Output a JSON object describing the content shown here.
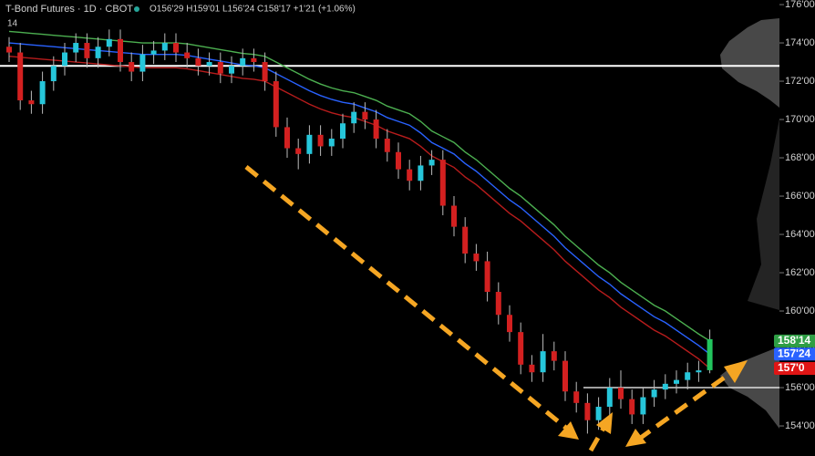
{
  "chart_data": {
    "type": "candlestick",
    "symbol": "T-Bond Futures · 1D · CBOT",
    "ohlc_text": "O156'29 H159'01 L156'24 C158'17 +1'21 (+1.06%)",
    "indicator_label": "14",
    "open": [
      173.8,
      173.5,
      171,
      170.8,
      172,
      172.8,
      173.5,
      174,
      173.2,
      173.8,
      174.2,
      173,
      172.5,
      173.4,
      173.6,
      174,
      173.5,
      173.2,
      172.8,
      173,
      172.4,
      172.8,
      173.2,
      173,
      172,
      169.6,
      168.5,
      168.2,
      169.2,
      168.6,
      169,
      169.8,
      170.4,
      170,
      169,
      168.3,
      167.4,
      166.8,
      167.6,
      167.9,
      165.5,
      164.4,
      163,
      162.6,
      161,
      159.8,
      158.9,
      157.2,
      156.8,
      157.9,
      157.4,
      155.8,
      155.2,
      154.3,
      155,
      156,
      155.4,
      154.6,
      155.5,
      155.9,
      156.2,
      156.4,
      156.8,
      156.91
    ],
    "high": [
      174.3,
      174,
      171.5,
      172.5,
      173.3,
      174,
      174.5,
      174.5,
      174.3,
      174.7,
      174.7,
      173.5,
      173.9,
      174.1,
      174.5,
      174.5,
      174,
      173.7,
      173.5,
      173.5,
      173.3,
      173.7,
      173.7,
      173.5,
      172.5,
      170.1,
      169,
      169.7,
      169.7,
      169.5,
      170.3,
      170.9,
      170.9,
      170.5,
      169.5,
      168.8,
      167.9,
      168.1,
      168.4,
      168.4,
      166,
      164.9,
      163.5,
      163.1,
      161.5,
      160.3,
      159.4,
      157.7,
      158.8,
      158.4,
      157.9,
      156.3,
      155.7,
      155.5,
      156.5,
      156.9,
      155.9,
      156,
      156.4,
      156.7,
      156.9,
      157.3,
      157.4,
      159.03
    ],
    "low": [
      173,
      170.5,
      170.3,
      170.3,
      171.5,
      172.3,
      173,
      172.7,
      172.7,
      173.3,
      172.5,
      172,
      172,
      172.9,
      173.1,
      173,
      172.7,
      172.3,
      172.3,
      171.9,
      171.9,
      172.3,
      172.5,
      171.5,
      169.1,
      168,
      167.4,
      167.7,
      168.1,
      168.1,
      168.5,
      169.3,
      169.5,
      168.5,
      167.8,
      166.9,
      166.3,
      166.3,
      167.1,
      165,
      163.9,
      162.5,
      162.1,
      160.5,
      159.3,
      158.4,
      156.7,
      156.3,
      156.3,
      156.9,
      155.3,
      154.7,
      153.6,
      153.8,
      154.5,
      154.9,
      154.1,
      154.1,
      155,
      155.4,
      155.7,
      155.9,
      156.3,
      156.75
    ],
    "close": [
      173.5,
      171,
      170.8,
      172,
      172.8,
      173.5,
      174,
      173.2,
      173.8,
      174.2,
      173,
      172.5,
      173.4,
      173.6,
      174,
      173.5,
      173.2,
      172.8,
      173,
      172.4,
      172.8,
      173.2,
      173,
      172,
      169.6,
      168.5,
      168.2,
      169.2,
      168.6,
      169,
      169.8,
      170.4,
      170,
      169,
      168.3,
      167.4,
      166.8,
      167.6,
      167.9,
      165.5,
      164.4,
      163,
      162.6,
      161,
      159.8,
      158.9,
      157.2,
      156.8,
      157.9,
      157.4,
      155.8,
      155.2,
      154.3,
      155,
      156,
      155.4,
      154.6,
      155.5,
      155.9,
      156.2,
      156.4,
      156.8,
      156.9,
      158.53
    ],
    "up_color": "#26c6da",
    "down_color": "#d32020",
    "last_color": "#22c55e",
    "series": [
      {
        "color": "#4caf50",
        "values": [
          174.6,
          174.55,
          174.5,
          174.45,
          174.4,
          174.35,
          174.3,
          174.25,
          174.2,
          174.15,
          174.1,
          174.05,
          174,
          174,
          174,
          174,
          173.95,
          173.85,
          173.75,
          173.65,
          173.55,
          173.45,
          173.4,
          173.3,
          173,
          172.7,
          172.4,
          172.1,
          171.85,
          171.65,
          171.5,
          171.4,
          171.2,
          171,
          170.7,
          170.5,
          170.3,
          169.9,
          169.4,
          169.1,
          168.8,
          168.3,
          167.9,
          167.4,
          166.9,
          166.4,
          166,
          165.5,
          165,
          164.5,
          163.9,
          163.4,
          162.9,
          162.4,
          162,
          161.5,
          161.1,
          160.7,
          160.3,
          160,
          159.6,
          159.2,
          158.8,
          158.44
        ]
      },
      {
        "color": "#2962ff",
        "values": [
          174,
          173.95,
          173.9,
          173.85,
          173.8,
          173.75,
          173.7,
          173.65,
          173.6,
          173.55,
          173.5,
          173.45,
          173.4,
          173.4,
          173.4,
          173.4,
          173.35,
          173.25,
          173.15,
          173.05,
          172.95,
          172.85,
          172.8,
          172.7,
          172.4,
          172.1,
          171.8,
          171.5,
          171.25,
          171.05,
          170.9,
          170.8,
          170.6,
          170.4,
          170.1,
          169.9,
          169.7,
          169.3,
          168.8,
          168.5,
          168.2,
          167.7,
          167.3,
          166.8,
          166.3,
          165.8,
          165.4,
          164.9,
          164.4,
          163.9,
          163.3,
          162.8,
          162.3,
          161.8,
          161.4,
          160.9,
          160.5,
          160.1,
          159.7,
          159.4,
          159,
          158.6,
          158.2,
          157.75
        ]
      },
      {
        "color": "#b71c1c",
        "values": [
          173.3,
          173.25,
          173.2,
          173.15,
          173.1,
          173.05,
          173,
          172.95,
          172.9,
          172.85,
          172.8,
          172.75,
          172.7,
          172.7,
          172.7,
          172.7,
          172.65,
          172.55,
          172.45,
          172.35,
          172.25,
          172.15,
          172.1,
          172,
          171.7,
          171.4,
          171.1,
          170.8,
          170.55,
          170.35,
          170.2,
          170.1,
          169.9,
          169.7,
          169.4,
          169.2,
          169,
          168.6,
          168.1,
          167.8,
          167.5,
          167,
          166.6,
          166.1,
          165.6,
          165.1,
          164.7,
          164.2,
          163.7,
          163.2,
          162.6,
          162.1,
          161.6,
          161.1,
          160.7,
          160.2,
          159.8,
          159.4,
          159,
          158.7,
          158.3,
          157.9,
          157.5,
          157
        ]
      }
    ],
    "price_tags": [
      {
        "value": 158.4375,
        "label": "158'14",
        "color": "#2e9e44"
      },
      {
        "value": 157.75,
        "label": "157'24",
        "color": "#2962ff"
      },
      {
        "value": 157.0,
        "label": "157'0",
        "color": "#e01515"
      }
    ],
    "levels": [
      172.8,
      156.0
    ],
    "ylim": [
      152.43,
      176.24
    ],
    "yticks": [
      {
        "value": 154,
        "label": "154'00"
      },
      {
        "value": 156,
        "label": "156'00"
      },
      {
        "value": 158,
        "label": "158'00"
      },
      {
        "value": 160,
        "label": "160'00"
      },
      {
        "value": 162,
        "label": "162'00"
      },
      {
        "value": 164,
        "label": "164'00"
      },
      {
        "value": 166,
        "label": "166'00"
      },
      {
        "value": 168,
        "label": "168'00"
      },
      {
        "value": 170,
        "label": "170'00"
      },
      {
        "value": 172,
        "label": "172'00"
      },
      {
        "value": 174,
        "label": "174'00"
      },
      {
        "value": 176,
        "label": "176'00"
      }
    ]
  }
}
